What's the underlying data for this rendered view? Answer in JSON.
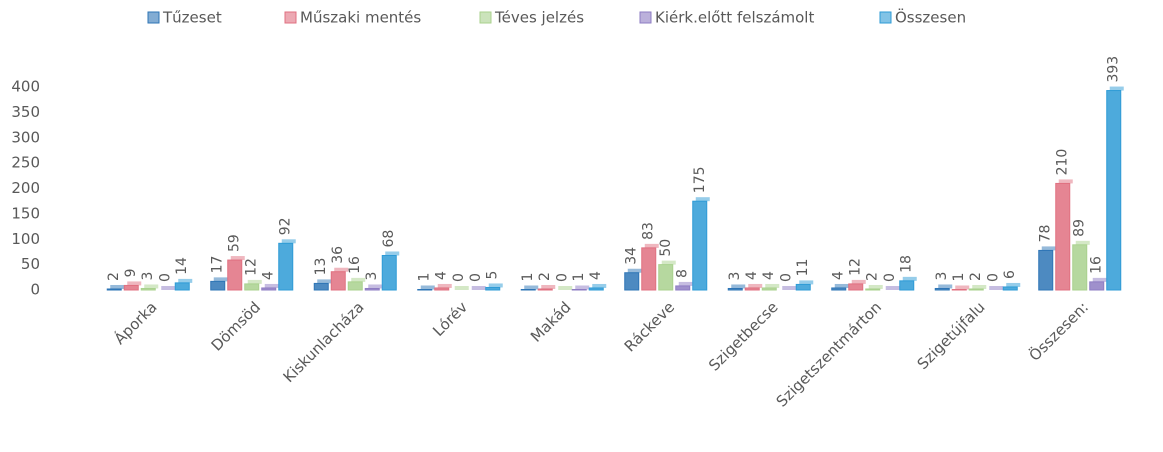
{
  "chart_data": {
    "type": "bar",
    "categories": [
      "Áporka",
      "Dömsöd",
      "Kiskunlacháza",
      "Lórév",
      "Makád",
      "Ráckeve",
      "Szigetbecse",
      "Szigetszentmárton",
      "Szigetújfalu",
      "Összesen:"
    ],
    "series": [
      {
        "name": "Tűzeset",
        "color": "#2e75b6",
        "values": [
          2,
          17,
          13,
          1,
          1,
          34,
          3,
          4,
          3,
          78
        ]
      },
      {
        "name": "Műszaki mentés",
        "color": "#e07080",
        "values": [
          9,
          59,
          36,
          4,
          2,
          83,
          4,
          12,
          1,
          210
        ]
      },
      {
        "name": "Téves jelzés",
        "color": "#a9d18e",
        "values": [
          3,
          12,
          16,
          0,
          0,
          50,
          4,
          2,
          2,
          89
        ]
      },
      {
        "name": "Kiérk.előtt felszámolt",
        "color": "#8e7cc3",
        "values": [
          0,
          4,
          3,
          0,
          1,
          8,
          0,
          0,
          0,
          16
        ]
      },
      {
        "name": "Összesen",
        "color": "#2e9bd6",
        "values": [
          14,
          92,
          68,
          5,
          4,
          175,
          11,
          18,
          6,
          393
        ]
      }
    ],
    "ylim": [
      0,
      400
    ],
    "yticks": [
      0,
      50,
      100,
      150,
      200,
      250,
      300,
      350,
      400
    ],
    "grid": false,
    "legend": "top"
  }
}
